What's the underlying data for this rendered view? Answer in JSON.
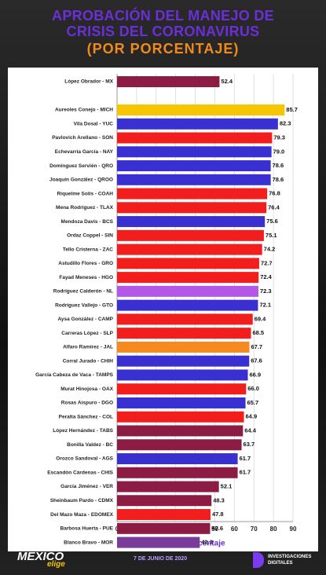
{
  "chart_data": {
    "type": "barh",
    "title": "APROBACIÓN DEL MANEJO DE CRISIS DEL CORONAVIRUS",
    "subtitle": "(POR PORCENTAJE)",
    "xlabel": "Porcentaje",
    "categories": [
      "López Obrador - MX",
      "Aureoles Conejo - MICH",
      "Vila Dosal - YUC",
      "Pavlovich Arellano - SON",
      "Echevarría García - NAY",
      "Domínguez Servién - QRO",
      "Joaquín González - QROO",
      "Riquelme Solís - COAH",
      "Mena Rodríguez - TLAX",
      "Mendoza Davis - BCS",
      "Ordaz Coppel - SIN",
      "Tello Cristerna - ZAC",
      "Astudillo Flores - GRO",
      "Fayad Meneses - HGO",
      "Rodríguez Calderón - NL",
      "Rodríguez Vallejo - GTO",
      "Aysa González - CAMP",
      "Carreras López - SLP",
      "Alfaro Ramírez - JAL",
      "Corral Jurado - CHIH",
      "García Cabeza de Vaca - TAMPS",
      "Murat Hinojosa - OAX",
      "Rosas Aispuro - DGO",
      "Peralta Sánchez - COL",
      "López Hernández - TABS",
      "Bonilla Valdez - BC",
      "Orozco Sandoval - AGS",
      "Escandón Cárdenas - CHIS",
      "García Jiménez - VER",
      "Sheinbaum Pardo - CDMX",
      "Del Mazo Maza - EDOMEX",
      "Barbosa Huerta - PUE",
      "Blanco Bravo - MOR"
    ],
    "values": [
      52.4,
      85.7,
      82.3,
      79.3,
      79.0,
      78.6,
      78.6,
      76.8,
      76.4,
      75.6,
      75.1,
      74.2,
      72.7,
      72.4,
      72.3,
      72.1,
      69.4,
      68.5,
      67.7,
      67.6,
      66.9,
      66.0,
      65.7,
      64.9,
      64.4,
      63.7,
      61.7,
      61.7,
      52.1,
      48.3,
      47.8,
      47.6,
      42.3
    ],
    "value_labels": [
      "52.4",
      "85.7",
      "82.3",
      "79.3",
      "79.0",
      "78.6",
      "78.6",
      "76.8",
      "76.4",
      "75.6",
      "75.1",
      "74.2",
      "72.7",
      "72.4",
      "72.3",
      "72.1",
      "69.4",
      "68.5",
      "67.7",
      "67.6",
      "66.9",
      "66.0",
      "65.7",
      "64.9",
      "64.4",
      "63.7",
      "61.7",
      "61.7",
      "52.1",
      "48.3",
      "47.8",
      "47.6",
      "42.3"
    ],
    "colors": [
      "#8c1c44",
      "#f7c600",
      "#3a2fd0",
      "#f21d1d",
      "#3a2fd0",
      "#3a2fd0",
      "#3a2fd0",
      "#f21d1d",
      "#f21d1d",
      "#3a2fd0",
      "#f21d1d",
      "#f21d1d",
      "#f21d1d",
      "#f21d1d",
      "#b456e6",
      "#3a2fd0",
      "#f21d1d",
      "#f21d1d",
      "#f78a1e",
      "#3a2fd0",
      "#3a2fd0",
      "#f21d1d",
      "#3a2fd0",
      "#f21d1d",
      "#8c1c44",
      "#8c1c44",
      "#3a2fd0",
      "#8c1c44",
      "#8c1c44",
      "#8c1c44",
      "#f21d1d",
      "#8c1c44",
      "#7a3c9a"
    ],
    "xlim": [
      0,
      90
    ],
    "xticks": [
      0,
      10,
      20,
      30,
      40,
      50,
      60,
      70,
      80,
      90
    ],
    "grid": true
  },
  "footer": {
    "logo": "MÉXICO",
    "logo_tag": "elige",
    "date": "7 DE JUNIO DE 2020",
    "brand_line1": "INVESTIGACIONES",
    "brand_line2": "DIGITALES"
  }
}
